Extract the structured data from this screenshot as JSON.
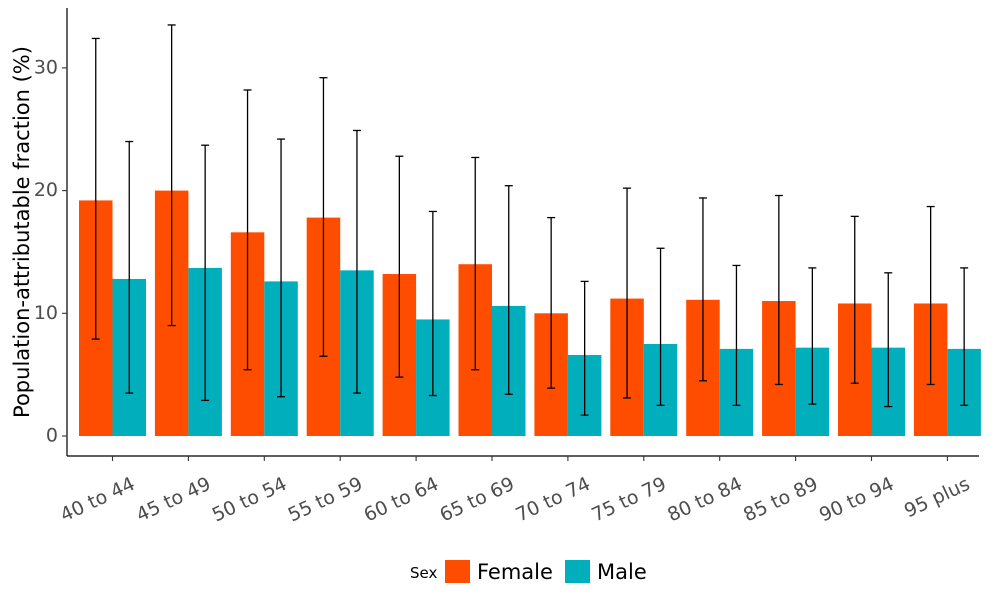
{
  "chart_data": {
    "type": "bar",
    "title": "",
    "xlabel": "",
    "ylabel": "Population-attributable fraction (%)",
    "ylim": [
      0,
      35
    ],
    "yticks": [
      0,
      10,
      20,
      30
    ],
    "ytick_labels": [
      "0",
      "10",
      "20",
      "30"
    ],
    "grid": false,
    "categories": [
      "40 to 44",
      "45 to 49",
      "50 to 54",
      "55 to 59",
      "60 to 64",
      "65 to 69",
      "70 to 74",
      "75 to 79",
      "80 to 84",
      "85 to 89",
      "90 to 94",
      "95 plus"
    ],
    "series": [
      {
        "name": "Female",
        "color": "#FF4D00",
        "values": [
          19.2,
          20.0,
          16.6,
          17.8,
          13.2,
          14.0,
          10.0,
          11.2,
          11.1,
          11.0,
          10.8,
          10.8
        ],
        "lower": [
          7.9,
          9.0,
          5.4,
          6.5,
          4.8,
          5.4,
          3.9,
          3.1,
          4.5,
          4.2,
          4.3,
          4.2
        ],
        "upper": [
          32.4,
          33.5,
          28.2,
          29.2,
          22.8,
          22.7,
          17.8,
          20.2,
          19.4,
          19.6,
          17.9,
          18.7
        ]
      },
      {
        "name": "Male",
        "color": "#00AFBB",
        "values": [
          12.8,
          13.7,
          12.6,
          13.5,
          9.5,
          10.6,
          6.6,
          7.5,
          7.1,
          7.2,
          7.2,
          7.1
        ],
        "lower": [
          3.5,
          2.9,
          3.2,
          3.5,
          3.3,
          3.4,
          1.7,
          2.5,
          2.5,
          2.6,
          2.4,
          2.5
        ],
        "upper": [
          24.0,
          23.7,
          24.2,
          24.9,
          18.3,
          20.4,
          12.6,
          15.3,
          13.9,
          13.7,
          13.3,
          13.7
        ]
      }
    ],
    "legend": {
      "title": "Sex",
      "position": "bottom",
      "entries": [
        "Female",
        "Male"
      ]
    }
  }
}
